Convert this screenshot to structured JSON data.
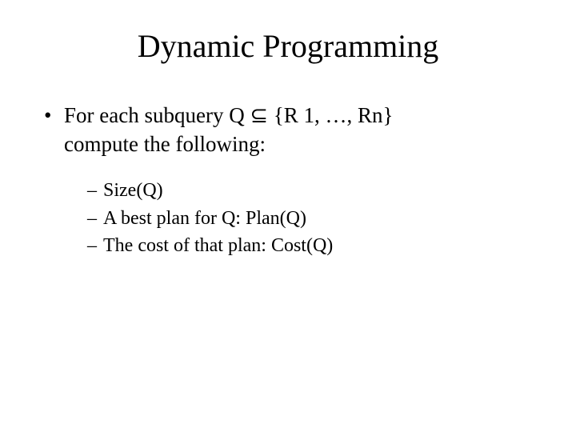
{
  "slide": {
    "title": "Dynamic Programming",
    "main_line1": "For each subquery Q ⊆ {R 1, …, Rn}",
    "main_line2": "compute the following:",
    "sub_items": [
      "Size(Q)",
      "A best plan for Q: Plan(Q)",
      "The cost of that plan: Cost(Q)"
    ],
    "colors": {
      "background": "#ffffff",
      "text": "#000000"
    },
    "typography": {
      "font_family": "Times New Roman",
      "title_fontsize": 40,
      "main_bullet_fontsize": 27,
      "sub_bullet_fontsize": 24
    }
  }
}
